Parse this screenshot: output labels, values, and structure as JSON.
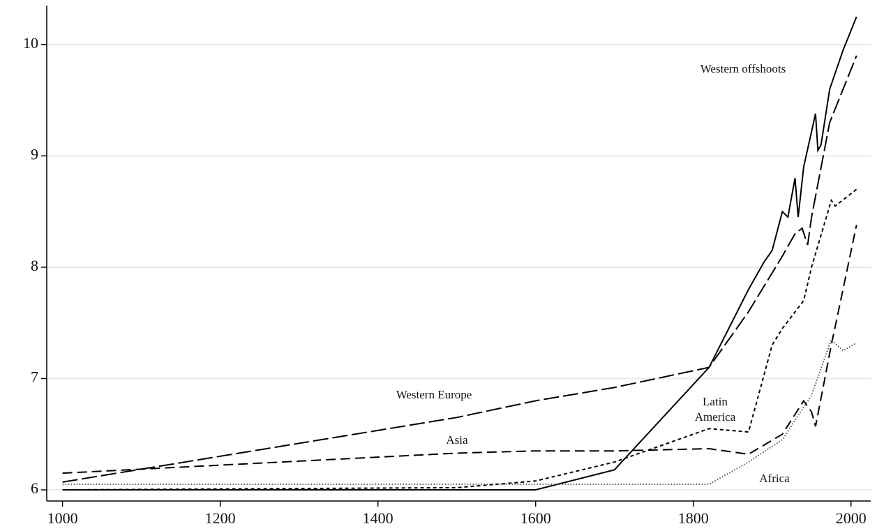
{
  "chart_data": {
    "type": "line",
    "xlim": [
      980,
      2025
    ],
    "xticks": [
      1000,
      1200,
      1400,
      1600,
      1800,
      2000
    ],
    "ylim": [
      5.9,
      10.35
    ],
    "yticks": [
      6,
      7,
      8,
      9,
      10
    ],
    "grid": true,
    "series": [
      {
        "name": "Western offshoots",
        "color": "#000000",
        "linestyle": "solid",
        "x": [
          1000,
          1600,
          1700,
          1820,
          1870,
          1890,
          1900,
          1913,
          1920,
          1929,
          1933,
          1940,
          1955,
          1958,
          1962,
          1973,
          1990,
          2007
        ],
        "values": [
          6.0,
          6.0,
          6.18,
          7.1,
          7.8,
          8.05,
          8.15,
          8.5,
          8.45,
          8.8,
          8.45,
          8.9,
          9.38,
          9.05,
          9.1,
          9.6,
          9.95,
          10.25
        ]
      },
      {
        "name": "Western Europe",
        "color": "#000000",
        "linestyle": "longdash",
        "x": [
          1000,
          1500,
          1600,
          1700,
          1820,
          1870,
          1913,
          1929,
          1938,
          1945,
          1950,
          1973,
          2007
        ],
        "values": [
          6.07,
          6.65,
          6.8,
          6.92,
          7.1,
          7.6,
          8.1,
          8.3,
          8.35,
          8.2,
          8.45,
          9.3,
          9.9
        ]
      },
      {
        "name": "Latin America",
        "color": "#000000",
        "linestyle": "shortdash",
        "x": [
          1000,
          1500,
          1600,
          1700,
          1820,
          1870,
          1900,
          1913,
          1940,
          1950,
          1975,
          1980,
          2007
        ],
        "values": [
          6.0,
          6.02,
          6.08,
          6.25,
          6.55,
          6.52,
          7.3,
          7.45,
          7.7,
          8.0,
          8.6,
          8.55,
          8.7
        ]
      },
      {
        "name": "Asia",
        "color": "#000000",
        "linestyle": "dash",
        "x": [
          1000,
          1500,
          1600,
          1700,
          1820,
          1870,
          1913,
          1940,
          1950,
          1955,
          1975,
          2007
        ],
        "values": [
          6.15,
          6.33,
          6.35,
          6.35,
          6.37,
          6.32,
          6.5,
          6.8,
          6.7,
          6.57,
          7.3,
          8.38
        ]
      },
      {
        "name": "Africa",
        "color": "#555555",
        "linestyle": "dotted",
        "x": [
          1000,
          1500,
          1820,
          1870,
          1913,
          1950,
          1975,
          1990,
          2007
        ],
        "values": [
          6.05,
          6.05,
          6.05,
          6.25,
          6.45,
          6.85,
          7.35,
          7.25,
          7.32
        ]
      }
    ]
  }
}
